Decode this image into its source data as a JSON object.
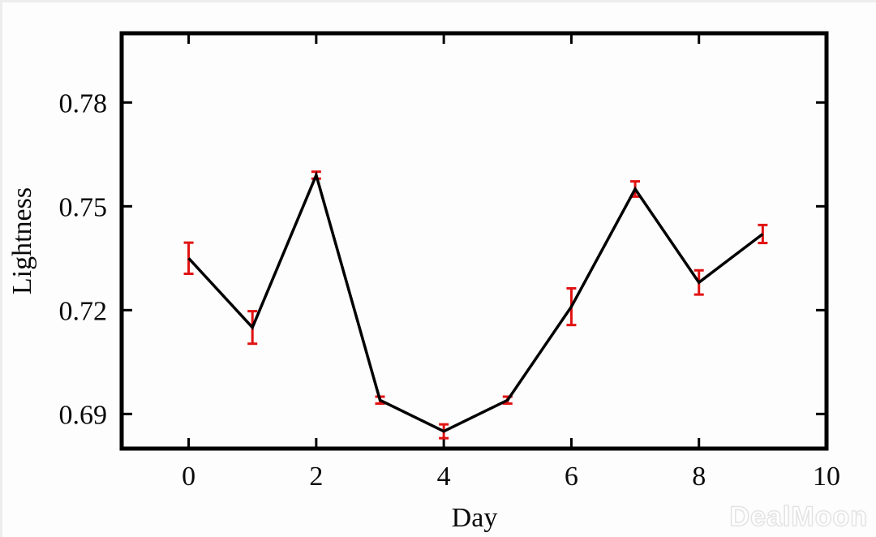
{
  "watermark": {
    "text": "DealMoon"
  },
  "chart_data": {
    "type": "line",
    "title": "",
    "xlabel": "Day",
    "ylabel": "Lightness",
    "x": [
      0,
      1,
      2,
      3,
      4,
      5,
      6,
      7,
      8,
      9
    ],
    "series": [
      {
        "name": "Lightness",
        "values": [
          0.735,
          0.715,
          0.759,
          0.694,
          0.685,
          0.694,
          0.721,
          0.755,
          0.728,
          0.742
        ],
        "errors": [
          0.0045,
          0.0047,
          0.001,
          0.001,
          0.002,
          0.001,
          0.0053,
          0.0022,
          0.0035,
          0.0026
        ]
      }
    ],
    "xlim": [
      -1.05,
      10
    ],
    "ylim": [
      0.68,
      0.8
    ],
    "xticks": [
      0,
      2,
      4,
      6,
      8,
      10
    ],
    "yticks": [
      0.69,
      0.72,
      0.75,
      0.78
    ],
    "grid": false,
    "legend": "none",
    "line_color": "#000000",
    "errorbar_color": "#e11212",
    "frame_color": "#000000"
  }
}
